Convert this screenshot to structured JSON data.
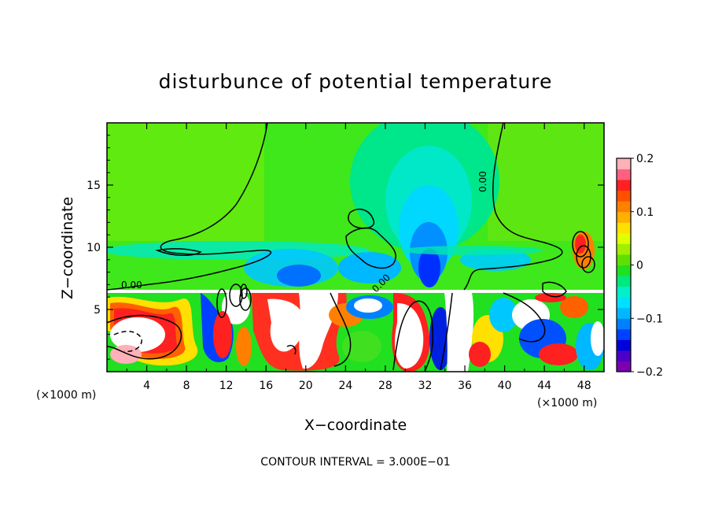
{
  "chart_data": {
    "type": "heatmap",
    "title": "disturbunce of potential temperature",
    "xlabel": "X−coordinate",
    "ylabel": "Z−coordinate",
    "x_unit_label": "(×1000 m)",
    "z_unit_label": "(×1000 m)",
    "xlim": [
      0,
      50
    ],
    "ylim": [
      0,
      20
    ],
    "x_ticks": [
      4,
      8,
      12,
      16,
      20,
      24,
      28,
      32,
      36,
      40,
      44,
      48
    ],
    "y_ticks": [
      5,
      10,
      15
    ],
    "colorbar": {
      "range": [
        -0.2,
        0.2
      ],
      "tick_labels": [
        "0.2",
        "0.1",
        "0",
        "−0.1",
        "−0.2"
      ],
      "tick_values": [
        0.2,
        0.1,
        0,
        -0.1,
        -0.2
      ],
      "colors": [
        "#7b00b0",
        "#4a00c8",
        "#0000d8",
        "#0040ff",
        "#0080ff",
        "#00b8ff",
        "#00e0ff",
        "#00f0c8",
        "#00e880",
        "#20e020",
        "#60e000",
        "#a0f000",
        "#e0ff00",
        "#ffe000",
        "#ffb000",
        "#ff8000",
        "#ff5000",
        "#ff2020",
        "#ff6080",
        "#ffb0b8"
      ]
    },
    "contour_labels": [
      {
        "text": "0.00",
        "x": 2.4,
        "z": 7.0
      },
      {
        "text": "0.00",
        "x": 37.6,
        "z": 15.5
      },
      {
        "text": "0.00",
        "x": 28.0,
        "z": 7.8
      }
    ],
    "footer": "CONTOUR INTERVAL = 3.000E−01"
  }
}
